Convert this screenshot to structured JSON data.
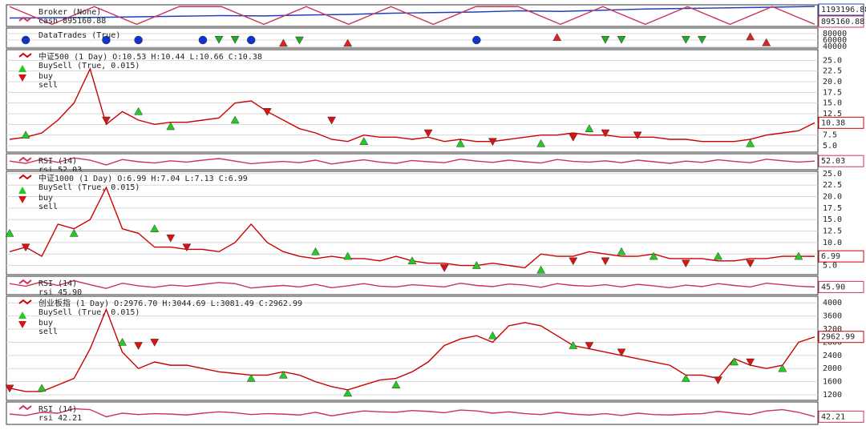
{
  "chart_data": [
    {
      "type": "line",
      "title": "Broker (None)",
      "ylim": [
        860000,
        1220000
      ],
      "series": [
        {
          "color": "#1f3fbf",
          "last_label": "1193196.88",
          "values": [
            1000000,
            1005000,
            1010000,
            1020000,
            1030000,
            1040000,
            1035000,
            1050000,
            1060000,
            1080000,
            1090000,
            1100000,
            1120000,
            1110000,
            1130000,
            1150000,
            1160000,
            1170000,
            1180000,
            1193196.88
          ]
        },
        {
          "name": "cash 895160.88",
          "color": "#cc3355",
          "last_label": "895160.88",
          "values": [
            1190000,
            895160.88,
            1190000,
            895160.88,
            1190000,
            1190000,
            895160.88,
            1190000,
            895160.88,
            1190000,
            895160.88,
            1190000,
            1190000,
            895160.88,
            1190000,
            895160.88,
            1190000,
            895160.88,
            1190000,
            895160.88
          ]
        }
      ]
    },
    {
      "type": "scatter",
      "title": "DataTrades (True)",
      "ylim": [
        35000,
        97500
      ],
      "yticks": [
        40000,
        60000,
        80000
      ],
      "markers": [
        {
          "shape": "circle",
          "color": "#1133cc",
          "x": [
            1,
            6,
            8,
            12,
            15,
            29
          ],
          "values": [
            60000,
            60000,
            60000,
            60000,
            60000,
            60000
          ]
        },
        {
          "shape": "triangle-down",
          "color": "#22aa22",
          "x": [
            13,
            14,
            18,
            37,
            38,
            42,
            43
          ],
          "values": [
            62000,
            62000,
            60000,
            62000,
            62000,
            62000,
            62000
          ]
        },
        {
          "shape": "triangle-up",
          "color": "#dd2222",
          "x": [
            17,
            21,
            34,
            46,
            47
          ],
          "values": [
            50000,
            50000,
            68000,
            70000,
            52000
          ]
        }
      ]
    },
    {
      "type": "line",
      "ylim": [
        3.5,
        27.5
      ],
      "yticks": [
        {
          "value": 5,
          "label": "5.0"
        },
        {
          "value": 7.5,
          "label": "7.5"
        },
        {
          "value": 10,
          "label": "10.0"
        },
        {
          "value": 12.5,
          "label": "12.5"
        },
        {
          "value": 15,
          "label": "15.0"
        },
        {
          "value": 17.5,
          "label": "17.5"
        },
        {
          "value": 20,
          "label": "20.0"
        },
        {
          "value": 22.5,
          "label": "22.5"
        },
        {
          "value": 25,
          "label": "25.0"
        }
      ],
      "series": [
        {
          "name": "中证500 (1 Day) O:10.53 H:10.44 L:10.66 C:10.38",
          "color": "#cc0000",
          "last_label": "10.38",
          "values": [
            6.5,
            7,
            8,
            11,
            15,
            23,
            10,
            13,
            11,
            10,
            10.5,
            10.5,
            11,
            11.5,
            15,
            15.5,
            13,
            11,
            9,
            8,
            6.5,
            6,
            7.5,
            7,
            7,
            6.5,
            7,
            6,
            6.5,
            6,
            6,
            6.5,
            7,
            7.5,
            7.5,
            8,
            7.5,
            7.5,
            7,
            7,
            7,
            6.5,
            6.5,
            6,
            6,
            6,
            6.5,
            7.5,
            8,
            8.5,
            10.38
          ]
        }
      ],
      "group": "BuySell (True, 0.015)",
      "markers": [
        {
          "name": "buy",
          "shape": "triangle-up",
          "color": "#22cc22",
          "x": [
            1,
            8,
            10,
            14,
            22,
            28,
            33,
            36,
            46
          ],
          "values": [
            7.5,
            13,
            9.5,
            11,
            6,
            5.5,
            5.5,
            9,
            5.5
          ]
        },
        {
          "name": "sell",
          "shape": "triangle-down",
          "color": "#dd1111",
          "x": [
            6,
            16,
            20,
            26,
            30,
            35,
            37,
            39
          ],
          "values": [
            11,
            13,
            11,
            8,
            6,
            7,
            8,
            7.5
          ]
        }
      ]
    },
    {
      "type": "line",
      "ylim": [
        25,
        75
      ],
      "series": [
        {
          "name": "RSI (14)",
          "color": "#cc3355",
          "last_label": "52.03",
          "values": [
            52,
            45,
            58,
            48,
            62,
            55,
            40,
            57,
            50,
            46,
            53,
            49,
            55,
            60,
            52,
            44,
            48,
            51,
            47,
            55,
            43,
            50,
            56,
            49,
            45,
            54,
            50,
            47,
            58,
            52,
            48,
            55,
            50,
            46,
            57,
            51,
            49,
            53,
            47,
            55,
            50,
            45,
            52,
            48,
            56,
            51,
            47,
            58,
            53,
            49,
            52.03
          ]
        }
      ],
      "group": "rsi 52.03"
    },
    {
      "type": "line",
      "ylim": [
        3,
        25.5
      ],
      "yticks": [
        {
          "value": 5,
          "label": "5.0"
        },
        {
          "value": 7.5,
          "label": "7.5"
        },
        {
          "value": 10,
          "label": "10.0"
        },
        {
          "value": 12.5,
          "label": "12.5"
        },
        {
          "value": 15,
          "label": "15.0"
        },
        {
          "value": 17.5,
          "label": "17.5"
        },
        {
          "value": 20,
          "label": "20.0"
        },
        {
          "value": 22.5,
          "label": "22.5"
        },
        {
          "value": 25,
          "label": "25.0"
        }
      ],
      "series": [
        {
          "name": "中证1000 (1 Day) O:6.99 H:7.04 L:7.13 C:6.99",
          "color": "#cc0000",
          "last_label": "6.99",
          "values": [
            8,
            9,
            7,
            14,
            13,
            15,
            22,
            13,
            12,
            9,
            9,
            8.5,
            8.5,
            8,
            10,
            14,
            10,
            8,
            7,
            6.5,
            7,
            6.5,
            6.5,
            6,
            7,
            6,
            5.5,
            5.5,
            5,
            5,
            5.5,
            5,
            4.5,
            7.5,
            7,
            7,
            8,
            7.5,
            7,
            7,
            7.5,
            6.5,
            6.5,
            6.5,
            6,
            6,
            6.5,
            6.5,
            7,
            7,
            6.99
          ]
        }
      ],
      "group": "BuySell (True, 0.015)",
      "markers": [
        {
          "name": "buy",
          "shape": "triangle-up",
          "color": "#22cc22",
          "x": [
            0,
            4,
            9,
            19,
            21,
            25,
            29,
            33,
            38,
            40,
            44,
            49
          ],
          "values": [
            12,
            12,
            13,
            8,
            7,
            6,
            5,
            4,
            8,
            7,
            7,
            7
          ]
        },
        {
          "name": "sell",
          "shape": "triangle-down",
          "color": "#dd1111",
          "x": [
            1,
            10,
            11,
            27,
            35,
            37,
            42,
            46
          ],
          "values": [
            9,
            11,
            9,
            4.5,
            6,
            6,
            5.5,
            5.5
          ]
        }
      ]
    },
    {
      "type": "line",
      "ylim": [
        25,
        75
      ],
      "series": [
        {
          "name": "RSI (14)",
          "color": "#cc3355",
          "last_label": "45.90",
          "values": [
            55,
            48,
            60,
            50,
            63,
            52,
            42,
            56,
            49,
            45,
            51,
            48,
            53,
            58,
            55,
            43,
            47,
            50,
            46,
            53,
            44,
            49,
            55,
            48,
            46,
            52,
            49,
            46,
            56,
            50,
            47,
            54,
            51,
            45,
            55,
            50,
            48,
            52,
            46,
            53,
            49,
            44,
            51,
            47,
            55,
            50,
            46,
            56,
            52,
            48,
            45.9
          ]
        }
      ],
      "group": "rsi 45.90"
    },
    {
      "type": "line",
      "ylim": [
        1030,
        4200
      ],
      "yticks": [
        1200,
        1600,
        2000,
        2400,
        2800,
        3200,
        3600,
        4000
      ],
      "series": [
        {
          "name": "创业板指 (1 Day) O:2976.70 H:3044.69 L:3081.49 C:2962.99",
          "color": "#cc0000",
          "last_label": "2962.99",
          "values": [
            1400,
            1300,
            1300,
            1500,
            1700,
            2600,
            3800,
            2500,
            2000,
            2200,
            2100,
            2100,
            2000,
            1900,
            1850,
            1800,
            1800,
            1900,
            1800,
            1600,
            1450,
            1350,
            1500,
            1650,
            1700,
            1900,
            2200,
            2700,
            2900,
            3000,
            2800,
            3300,
            3400,
            3300,
            3000,
            2700,
            2600,
            2500,
            2400,
            2300,
            2200,
            2100,
            1800,
            1800,
            1700,
            2300,
            2100,
            2000,
            2100,
            2800,
            2962.99
          ]
        }
      ],
      "group": "BuySell (True, 0.015)",
      "markers": [
        {
          "name": "buy",
          "shape": "triangle-up",
          "color": "#22cc22",
          "x": [
            2,
            7,
            15,
            17,
            21,
            24,
            30,
            35,
            42,
            45,
            48
          ],
          "values": [
            1400,
            2800,
            1700,
            1800,
            1250,
            1500,
            3000,
            2700,
            1700,
            2200,
            2000
          ]
        },
        {
          "name": "sell",
          "shape": "triangle-down",
          "color": "#dd1111",
          "x": [
            0,
            8,
            9,
            36,
            38,
            44,
            46
          ],
          "values": [
            1400,
            2700,
            2800,
            2700,
            2500,
            1650,
            2200
          ]
        }
      ]
    },
    {
      "type": "line",
      "ylim": [
        25,
        75
      ],
      "series": [
        {
          "name": "RSI (14)",
          "color": "#cc3355",
          "last_label": "42.21",
          "values": [
            48,
            45,
            52,
            50,
            60,
            58,
            42,
            50,
            47,
            49,
            48,
            46,
            50,
            53,
            51,
            47,
            49,
            48,
            46,
            52,
            44,
            50,
            55,
            53,
            52,
            56,
            54,
            51,
            57,
            55,
            50,
            53,
            49,
            47,
            52,
            48,
            46,
            49,
            45,
            50,
            47,
            46,
            48,
            49,
            54,
            50,
            47,
            55,
            58,
            52,
            42.21
          ]
        }
      ],
      "group": "rsi 42.21"
    }
  ]
}
